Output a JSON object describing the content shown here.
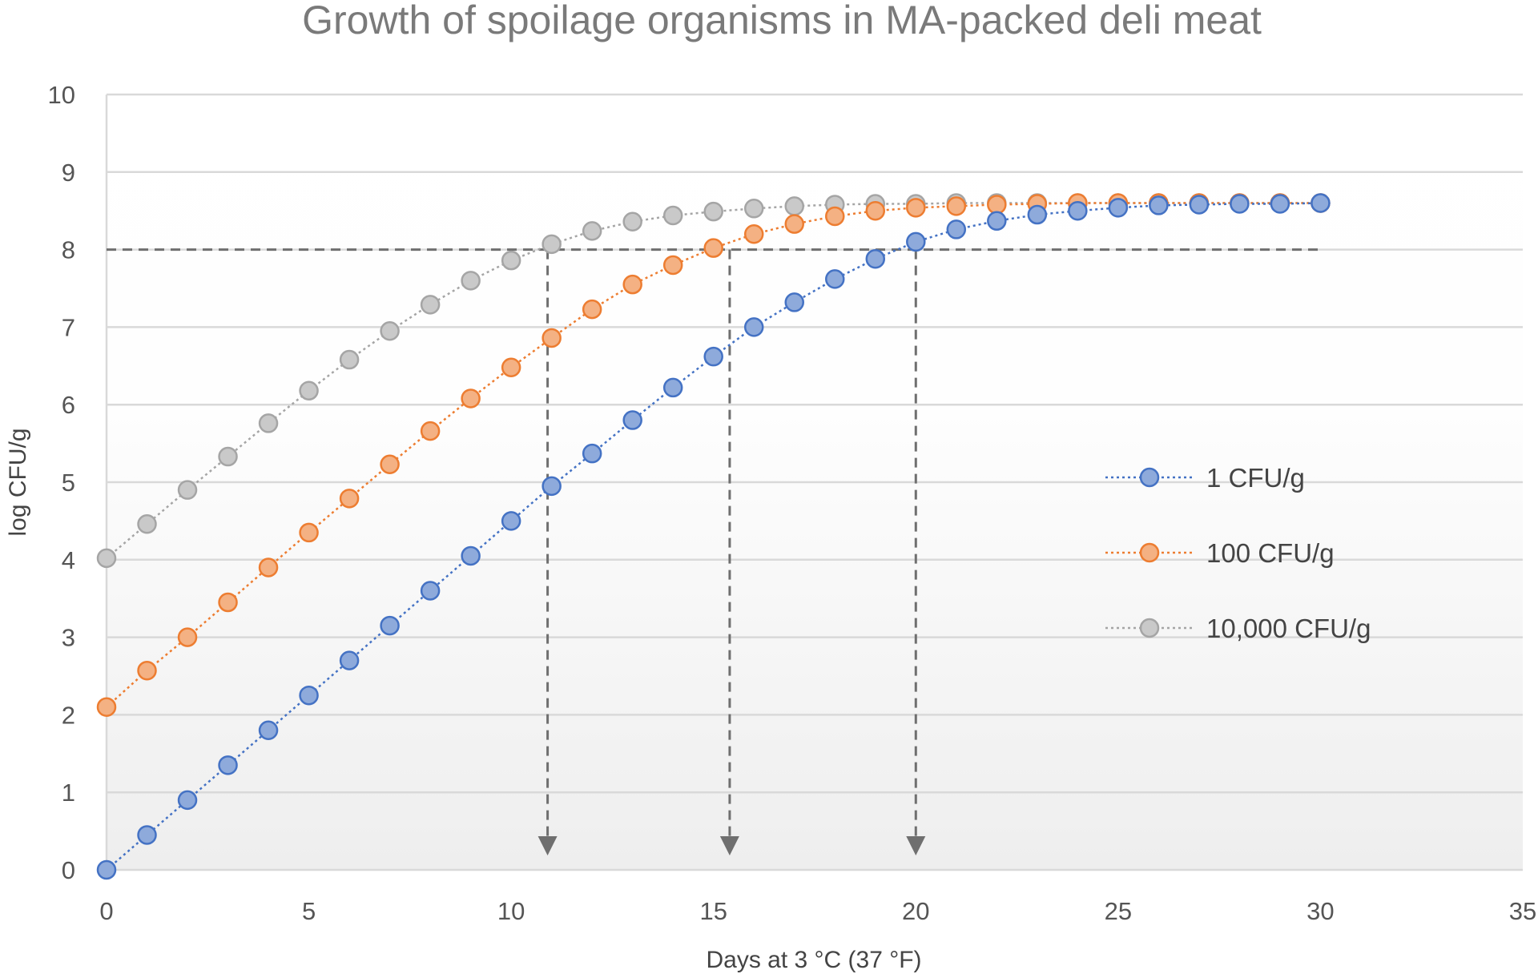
{
  "chart_data": {
    "type": "line",
    "title": "Growth of spoilage organisms in MA-packed deli meat",
    "xlabel": "Days at 3 °C (37 °F)",
    "ylabel": "log CFU/g",
    "xlim": [
      0,
      35
    ],
    "ylim": [
      0,
      10
    ],
    "x_ticks": [
      0,
      5,
      10,
      15,
      20,
      25,
      30,
      35
    ],
    "y_ticks": [
      0,
      1,
      2,
      3,
      4,
      5,
      6,
      7,
      8,
      9,
      10
    ],
    "grid": "horizontal",
    "legend_position": "right",
    "x": [
      0,
      1,
      2,
      3,
      4,
      5,
      6,
      7,
      8,
      9,
      10,
      11,
      12,
      13,
      14,
      15,
      16,
      17,
      18,
      19,
      20,
      21,
      22,
      23,
      24,
      25,
      26,
      27,
      28,
      29,
      30
    ],
    "series": [
      {
        "name": "1 CFU/g",
        "color": "#4472c4",
        "fill": "#8eaadb",
        "values": [
          0,
          0.45,
          0.9,
          1.35,
          1.8,
          2.25,
          2.7,
          3.15,
          3.6,
          4.05,
          4.5,
          4.95,
          5.37,
          5.8,
          6.22,
          6.62,
          7.0,
          7.32,
          7.62,
          7.88,
          8.1,
          8.26,
          8.37,
          8.45,
          8.5,
          8.54,
          8.57,
          8.58,
          8.59,
          8.59,
          8.6
        ]
      },
      {
        "name": "100 CFU/g",
        "color": "#ed7d31",
        "fill": "#f4b183",
        "values": [
          2.1,
          2.57,
          3.0,
          3.45,
          3.9,
          4.35,
          4.79,
          5.23,
          5.66,
          6.08,
          6.48,
          6.86,
          7.23,
          7.55,
          7.8,
          8.02,
          8.2,
          8.33,
          8.43,
          8.5,
          8.54,
          8.56,
          8.58,
          8.59,
          8.6,
          8.6,
          8.6,
          8.6,
          8.6,
          8.6,
          8.6
        ]
      },
      {
        "name": "10,000 CFU/g",
        "color": "#a5a5a5",
        "fill": "#c9c9c9",
        "values": [
          4.02,
          4.46,
          4.9,
          5.33,
          5.76,
          6.18,
          6.58,
          6.95,
          7.29,
          7.6,
          7.86,
          8.07,
          8.24,
          8.36,
          8.44,
          8.49,
          8.53,
          8.56,
          8.58,
          8.59,
          8.59,
          8.6,
          8.6,
          8.6,
          8.6,
          8.6,
          8.6,
          8.6,
          8.6,
          8.6,
          8.6
        ]
      }
    ],
    "threshold_y": 8,
    "threshold_x_range": [
      0,
      30
    ],
    "drop_lines_x": [
      10.9,
      15.4,
      20
    ]
  }
}
